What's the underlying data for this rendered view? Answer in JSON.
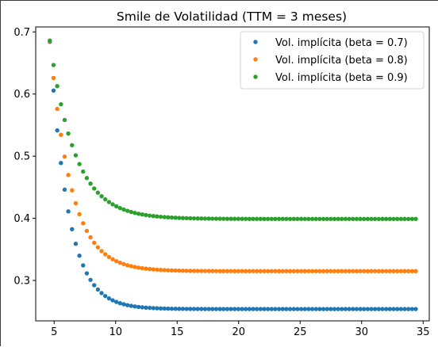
{
  "chart_data": {
    "type": "scatter",
    "title": "Smile de Volatilidad (TTM = 3 meses)",
    "xlabel": "",
    "ylabel": "",
    "xlim": [
      3.5,
      35.5
    ],
    "ylim": [
      0.235,
      0.708
    ],
    "xticks": [
      5,
      10,
      15,
      20,
      25,
      30,
      35
    ],
    "yticks": [
      0.3,
      0.4,
      0.5,
      0.6,
      0.7
    ],
    "grid": false,
    "legend_position": "top-right",
    "x_points": {
      "start": 4.65,
      "end": 34.4,
      "count": 100
    },
    "series": [
      {
        "name": "Vol. implícita (beta = 0.7)",
        "color": "#1f77b4",
        "base": 0.254,
        "amp": 0.43,
        "decay": 0.67
      },
      {
        "name": "Vol. implícita (beta = 0.8)",
        "color": "#ff7f0e",
        "base": 0.315,
        "amp": 0.37,
        "decay": 0.58
      },
      {
        "name": "Vol. implícita (beta = 0.9)",
        "color": "#2ca02c",
        "base": 0.399,
        "amp": 0.287,
        "decay": 0.49
      }
    ]
  }
}
